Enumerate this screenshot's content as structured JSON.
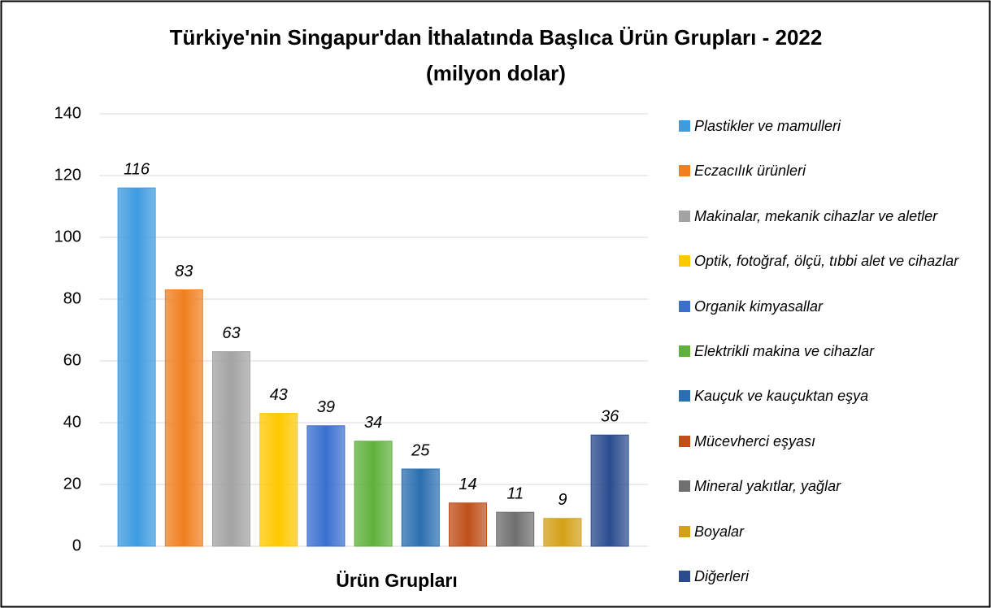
{
  "chart_data": {
    "type": "bar",
    "title": "Türkiye'nin Singapur'dan İthalatında Başlıca Ürün Grupları - 2022",
    "subtitle": "(milyon dolar)",
    "x_label": "Ürün Grupları",
    "categories": [
      "Plastikler ve mamulleri",
      "Eczacılık ürünleri",
      "Makinalar, mekanik cihazlar ve aletler",
      "Optik, fotoğraf, ölçü, tıbbi alet ve cihazlar",
      "Organik kimyasallar",
      "Elektrikli makina ve cihazlar",
      "Kauçuk ve kauçuktan eşya",
      "Mücevherci eşyası",
      "Mineral yakıtlar, yağlar",
      "Boyalar",
      "Diğerleri"
    ],
    "values": [
      116,
      83,
      63,
      43,
      39,
      34,
      25,
      14,
      11,
      9,
      36
    ],
    "colors": [
      "#3d9be0",
      "#f07f1f",
      "#a3a3a3",
      "#ffc800",
      "#3a6fd0",
      "#5fb13c",
      "#2a6fb0",
      "#c0501a",
      "#6f6f6f",
      "#d4a017",
      "#2a4c8f"
    ],
    "ylim": [
      0,
      140
    ],
    "yticks": [
      0,
      20,
      40,
      60,
      80,
      100,
      120,
      140
    ],
    "grid": true,
    "legend": "right"
  }
}
